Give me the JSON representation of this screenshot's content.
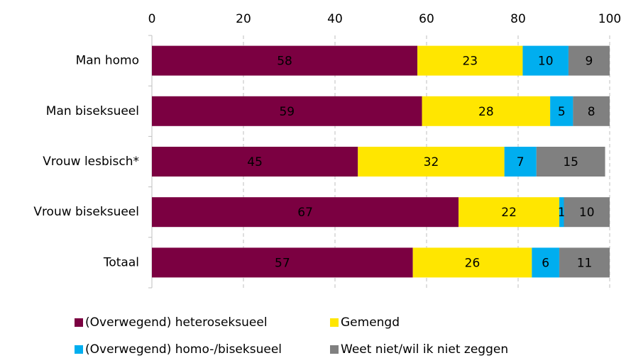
{
  "chart_data": {
    "type": "stacked-bar-horizontal",
    "categories": [
      "Man homo",
      "Man biseksueel",
      "Vrouw lesbisch*",
      "Vrouw biseksueel",
      "Totaal"
    ],
    "series": [
      {
        "name": "(Overwegend) heteroseksueel",
        "color": "#7b0041",
        "values": [
          58,
          59,
          45,
          67,
          57
        ]
      },
      {
        "name": "Gemengd",
        "color": "#ffe600",
        "values": [
          23,
          28,
          32,
          22,
          26
        ]
      },
      {
        "name": "(Overwegend) homo-/biseksueel",
        "color": "#00aeef",
        "values": [
          10,
          5,
          7,
          1,
          6
        ]
      },
      {
        "name": "Weet niet/wil ik niet zeggen",
        "color": "#808080",
        "values": [
          9,
          8,
          15,
          10,
          11
        ]
      }
    ],
    "xlim": [
      0,
      100
    ],
    "xticks": [
      0,
      20,
      40,
      60,
      80,
      100
    ],
    "grid": true,
    "legend": "bottom"
  }
}
